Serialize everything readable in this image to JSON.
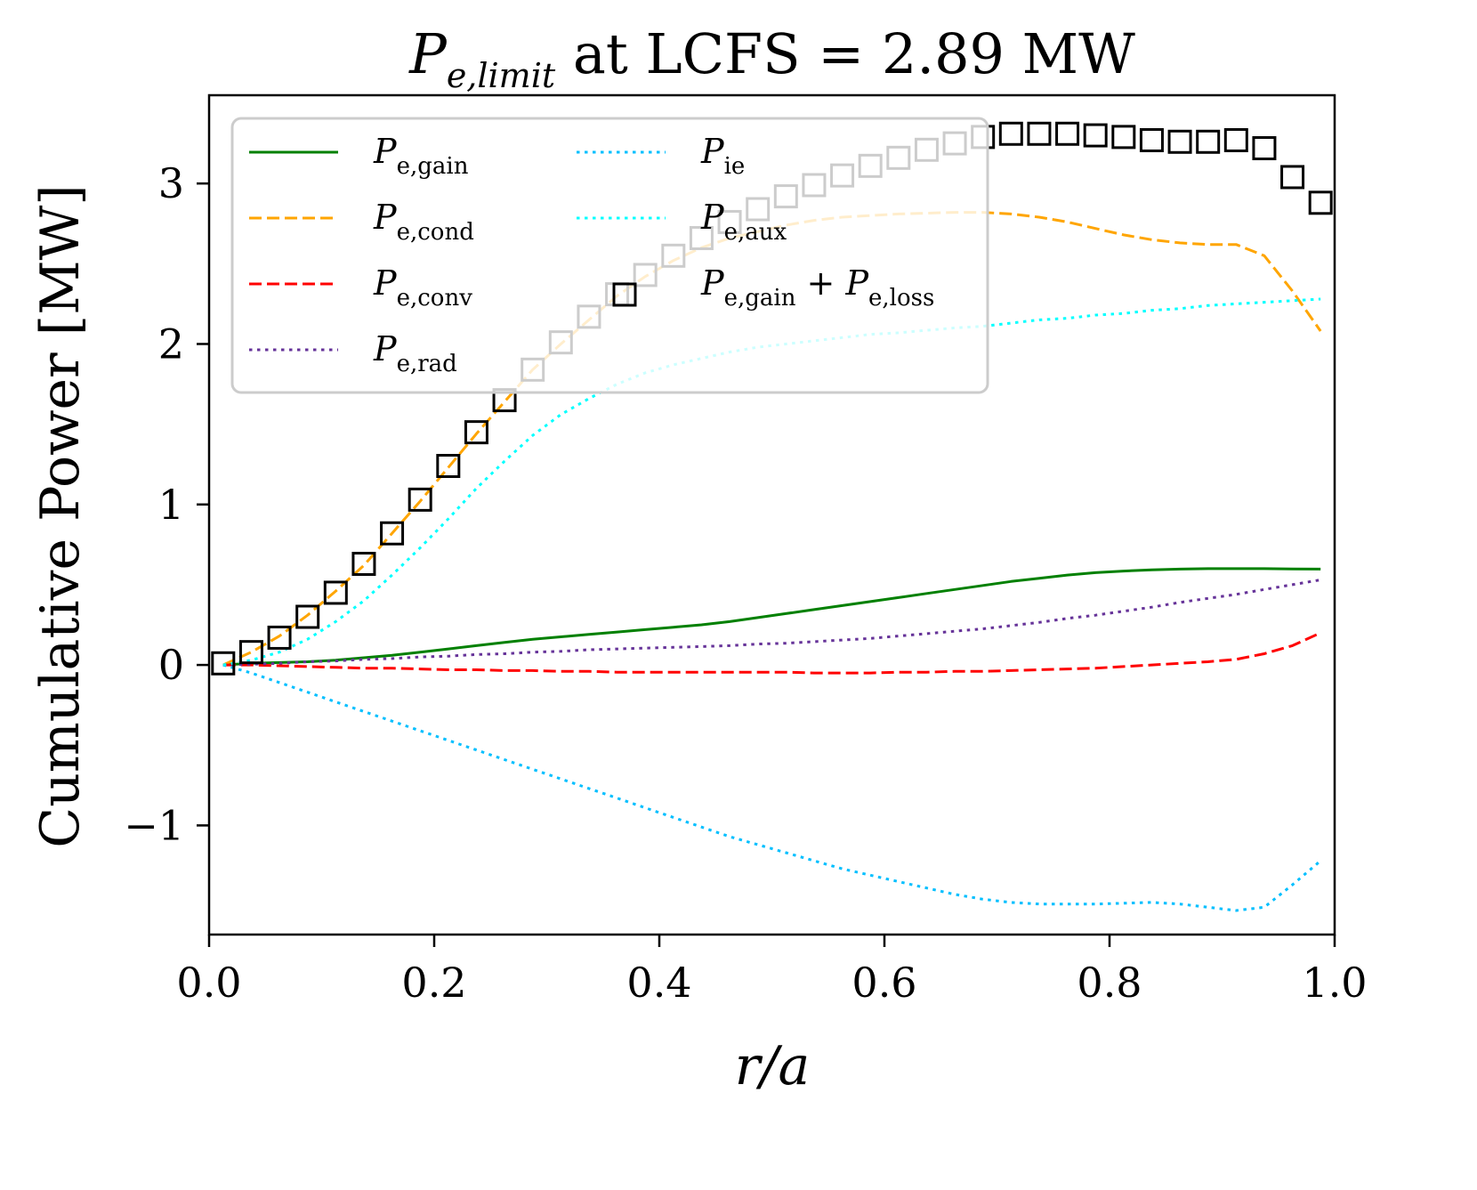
{
  "chart_data": {
    "type": "line",
    "title": {
      "main": "P",
      "subscript": "e,limit",
      "rest": " at LCFS = 2.89 MW"
    },
    "xlabel": "r/a",
    "ylabel": "Cumulative Power [MW]",
    "xlim": [
      0.0,
      1.0
    ],
    "ylim": [
      -1.68,
      3.55
    ],
    "xticks": [
      0.0,
      0.2,
      0.4,
      0.6,
      0.8,
      1.0
    ],
    "xtick_labels": [
      "0.0",
      "0.2",
      "0.4",
      "0.6",
      "0.8",
      "1.0"
    ],
    "yticks": [
      -1,
      0,
      1,
      2,
      3
    ],
    "ytick_labels": [
      "−1",
      "0",
      "1",
      "2",
      "3"
    ],
    "grid": false,
    "legend": {
      "placement": "upper-left",
      "columns": 2,
      "entries": [
        {
          "main": "P",
          "sub": "e,gain",
          "series": "P_e_gain"
        },
        {
          "main": "P",
          "sub": "e,cond",
          "series": "P_e_cond"
        },
        {
          "main": "P",
          "sub": "e,conv",
          "series": "P_e_conv"
        },
        {
          "main": "P",
          "sub": "e,rad",
          "series": "P_e_rad"
        },
        {
          "main": "P",
          "sub": "ie",
          "series": "P_ie"
        },
        {
          "main": "P",
          "sub": "e,aux",
          "series": "P_e_aux"
        },
        {
          "main": "P",
          "sub": "e,gain",
          "plus": " + ",
          "main2": "P",
          "sub2": "e,loss",
          "series": "P_e_total"
        }
      ]
    },
    "x": [
      0.0125,
      0.0375,
      0.0625,
      0.0875,
      0.1125,
      0.1375,
      0.1625,
      0.1875,
      0.2125,
      0.2375,
      0.2625,
      0.2875,
      0.3125,
      0.3375,
      0.3625,
      0.3875,
      0.4125,
      0.4375,
      0.4625,
      0.4875,
      0.5125,
      0.5375,
      0.5625,
      0.5875,
      0.6125,
      0.6375,
      0.6625,
      0.6875,
      0.7125,
      0.7375,
      0.7625,
      0.7875,
      0.8125,
      0.8375,
      0.8625,
      0.8875,
      0.9125,
      0.9375,
      0.9625,
      0.9875
    ],
    "series": [
      {
        "name": "P_e_gain",
        "label": "P_{e,gain}",
        "color": "#008000",
        "style": "solid",
        "values": [
          0.0,
          0.01,
          0.015,
          0.02,
          0.03,
          0.045,
          0.06,
          0.08,
          0.1,
          0.12,
          0.14,
          0.16,
          0.175,
          0.19,
          0.205,
          0.22,
          0.235,
          0.25,
          0.27,
          0.295,
          0.32,
          0.345,
          0.37,
          0.395,
          0.42,
          0.445,
          0.47,
          0.495,
          0.52,
          0.54,
          0.56,
          0.575,
          0.585,
          0.592,
          0.597,
          0.6,
          0.6,
          0.6,
          0.598,
          0.597
        ]
      },
      {
        "name": "P_e_cond",
        "label": "P_{e,cond}",
        "color": "#ffa500",
        "style": "dashed",
        "values": [
          0.0,
          0.08,
          0.18,
          0.31,
          0.46,
          0.62,
          0.82,
          1.02,
          1.23,
          1.44,
          1.64,
          1.84,
          2.0,
          2.15,
          2.3,
          2.42,
          2.52,
          2.6,
          2.66,
          2.7,
          2.74,
          2.77,
          2.79,
          2.8,
          2.81,
          2.815,
          2.82,
          2.82,
          2.81,
          2.79,
          2.76,
          2.72,
          2.68,
          2.65,
          2.63,
          2.62,
          2.62,
          2.55,
          2.33,
          2.08
        ]
      },
      {
        "name": "P_e_conv",
        "label": "P_{e,conv}",
        "color": "#ff0000",
        "style": "dashed",
        "values": [
          0.0,
          0.0,
          -0.005,
          -0.01,
          -0.015,
          -0.02,
          -0.02,
          -0.025,
          -0.03,
          -0.03,
          -0.035,
          -0.035,
          -0.04,
          -0.04,
          -0.045,
          -0.045,
          -0.045,
          -0.045,
          -0.045,
          -0.045,
          -0.045,
          -0.05,
          -0.05,
          -0.05,
          -0.045,
          -0.045,
          -0.04,
          -0.04,
          -0.035,
          -0.03,
          -0.025,
          -0.02,
          -0.01,
          0.0,
          0.01,
          0.02,
          0.035,
          0.07,
          0.12,
          0.2
        ]
      },
      {
        "name": "P_e_rad",
        "label": "P_{e,rad}",
        "color": "#663399",
        "style": "dotted",
        "values": [
          0.0,
          0.005,
          0.01,
          0.02,
          0.025,
          0.035,
          0.04,
          0.05,
          0.055,
          0.065,
          0.07,
          0.08,
          0.085,
          0.095,
          0.1,
          0.105,
          0.11,
          0.115,
          0.12,
          0.13,
          0.135,
          0.145,
          0.155,
          0.165,
          0.18,
          0.195,
          0.21,
          0.225,
          0.245,
          0.265,
          0.29,
          0.31,
          0.335,
          0.36,
          0.39,
          0.415,
          0.44,
          0.47,
          0.5,
          0.53
        ]
      },
      {
        "name": "P_ie",
        "label": "P_{ie}",
        "color": "#00bfff",
        "style": "dotted",
        "values": [
          0.0,
          -0.05,
          -0.11,
          -0.17,
          -0.23,
          -0.29,
          -0.35,
          -0.41,
          -0.47,
          -0.53,
          -0.59,
          -0.65,
          -0.71,
          -0.77,
          -0.83,
          -0.89,
          -0.95,
          -1.01,
          -1.07,
          -1.12,
          -1.17,
          -1.22,
          -1.27,
          -1.31,
          -1.35,
          -1.39,
          -1.43,
          -1.46,
          -1.48,
          -1.49,
          -1.49,
          -1.49,
          -1.485,
          -1.48,
          -1.49,
          -1.51,
          -1.53,
          -1.51,
          -1.37,
          -1.22
        ]
      },
      {
        "name": "P_e_aux",
        "label": "P_{e,aux}",
        "color": "#00ffff",
        "style": "dotted",
        "values": [
          0.0,
          0.03,
          0.08,
          0.16,
          0.27,
          0.4,
          0.56,
          0.73,
          0.91,
          1.1,
          1.27,
          1.43,
          1.56,
          1.66,
          1.75,
          1.82,
          1.87,
          1.91,
          1.95,
          1.98,
          2.0,
          2.02,
          2.04,
          2.06,
          2.07,
          2.085,
          2.1,
          2.11,
          2.13,
          2.15,
          2.16,
          2.18,
          2.19,
          2.21,
          2.22,
          2.24,
          2.25,
          2.26,
          2.27,
          2.28
        ]
      },
      {
        "name": "P_e_total",
        "label": "P_{e,gain} + P_{e,loss}",
        "color": "#000000",
        "style": "markers",
        "marker": "square-open",
        "values": [
          0.01,
          0.08,
          0.17,
          0.3,
          0.45,
          0.63,
          0.82,
          1.03,
          1.24,
          1.45,
          1.65,
          1.84,
          2.01,
          2.17,
          2.31,
          2.43,
          2.55,
          2.66,
          2.76,
          2.84,
          2.92,
          2.99,
          3.05,
          3.11,
          3.16,
          3.21,
          3.25,
          3.29,
          3.31,
          3.31,
          3.31,
          3.3,
          3.29,
          3.27,
          3.26,
          3.26,
          3.27,
          3.22,
          3.04,
          2.88
        ]
      }
    ]
  }
}
